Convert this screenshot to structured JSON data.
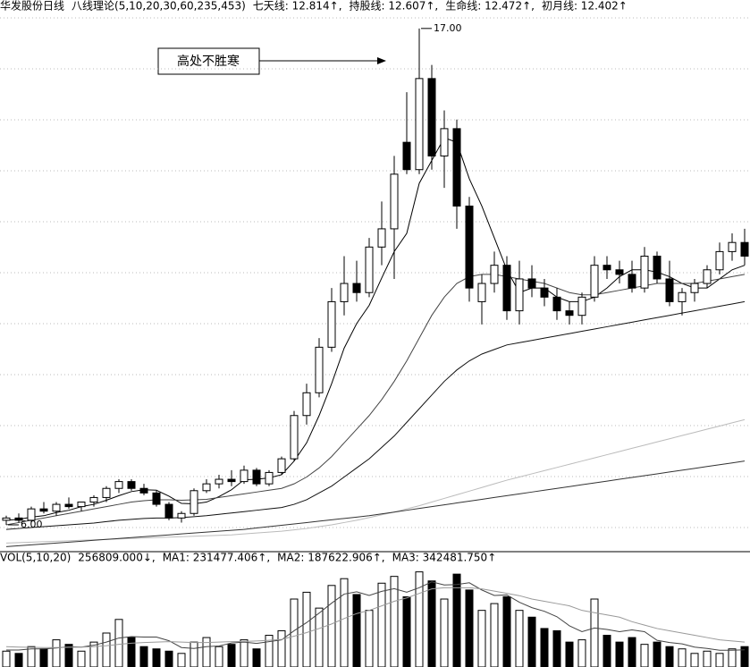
{
  "chart_data": [
    {
      "type": "candlestick",
      "title": "华发股份日线",
      "subtitle": "八线理论(5,10,20,30,60,235,453)",
      "readouts": [
        "七天线: 12.814↑,",
        "持股线: 12.607↑,",
        "生命线: 12.472↑,",
        "初月线: 12.402↑"
      ],
      "annotations": [
        "高处不胜寒"
      ],
      "high_label": "17.00",
      "low_label": "6.00",
      "open": [
        6.2,
        6.25,
        6.2,
        6.45,
        6.4,
        6.55,
        6.5,
        6.6,
        6.7,
        6.9,
        7.05,
        6.9,
        6.8,
        6.55,
        6.25,
        6.35,
        6.85,
        7.0,
        7.1,
        7.05,
        7.3,
        7.0,
        7.25,
        7.55,
        8.5,
        9.0,
        10.0,
        11.0,
        11.4,
        11.2,
        12.2,
        12.6,
        14.5,
        13.9,
        15.9,
        14.2,
        14.8,
        13.1,
        11.0,
        11.4,
        11.8,
        10.8,
        11.5,
        11.3,
        11.1,
        10.8,
        10.7,
        11.1,
        11.8,
        11.7,
        11.6,
        11.3,
        12.0,
        11.5,
        11.0,
        11.2,
        11.4,
        11.7,
        12.1,
        12.3
      ],
      "high": [
        6.3,
        6.35,
        6.5,
        6.6,
        6.6,
        6.7,
        6.6,
        6.75,
        6.95,
        7.1,
        7.1,
        7.0,
        6.85,
        6.6,
        6.4,
        6.9,
        7.1,
        7.2,
        7.3,
        7.4,
        7.35,
        7.3,
        7.6,
        8.6,
        9.2,
        10.2,
        11.3,
        12.0,
        11.9,
        12.4,
        13.2,
        14.2,
        15.6,
        17.0,
        16.2,
        15.2,
        15.0,
        13.3,
        11.6,
        12.1,
        12.0,
        11.9,
        11.8,
        11.5,
        11.3,
        11.0,
        11.2,
        12.0,
        12.0,
        11.9,
        11.9,
        12.2,
        12.1,
        11.9,
        11.3,
        11.5,
        11.8,
        12.3,
        12.5,
        12.6
      ],
      "low": [
        6.1,
        6.15,
        6.15,
        6.35,
        6.3,
        6.45,
        6.4,
        6.5,
        6.6,
        6.8,
        6.85,
        6.75,
        6.5,
        6.2,
        6.15,
        6.3,
        6.8,
        6.9,
        6.95,
        7.0,
        6.95,
        6.95,
        7.2,
        7.5,
        8.3,
        8.9,
        9.9,
        10.7,
        11.0,
        11.1,
        11.8,
        11.5,
        13.8,
        13.8,
        13.9,
        13.5,
        12.6,
        11.0,
        10.5,
        11.2,
        10.6,
        10.5,
        11.1,
        10.9,
        10.6,
        10.5,
        10.5,
        11.0,
        11.5,
        11.4,
        11.2,
        11.2,
        11.4,
        10.9,
        10.7,
        11.0,
        11.3,
        11.6,
        11.9,
        11.8
      ],
      "close": [
        6.25,
        6.2,
        6.45,
        6.4,
        6.55,
        6.5,
        6.6,
        6.7,
        6.9,
        7.05,
        6.9,
        6.8,
        6.55,
        6.25,
        6.35,
        6.85,
        7.0,
        7.1,
        7.05,
        7.3,
        7.0,
        7.25,
        7.55,
        8.5,
        9.0,
        10.0,
        11.0,
        11.4,
        11.2,
        12.2,
        12.6,
        13.8,
        13.9,
        15.9,
        14.2,
        14.8,
        13.1,
        11.3,
        11.4,
        11.8,
        10.8,
        11.5,
        11.3,
        11.1,
        10.8,
        10.7,
        11.1,
        11.8,
        11.7,
        11.6,
        11.3,
        12.0,
        11.5,
        11.0,
        11.2,
        11.4,
        11.7,
        12.1,
        12.3,
        12.0
      ],
      "color_up": "#ffffff",
      "color_down": "#000000",
      "lines": [
        {
          "color": "#000000",
          "values": [
            6.2,
            6.22,
            6.27,
            6.3,
            6.37,
            6.42,
            6.5,
            6.55,
            6.64,
            6.74,
            6.83,
            6.87,
            6.86,
            6.73,
            6.57,
            6.56,
            6.6,
            6.72,
            6.87,
            7.09,
            7.1,
            7.13,
            7.2,
            7.5,
            7.9,
            8.5,
            9.2,
            9.98,
            10.52,
            10.92,
            11.52,
            12.1,
            12.5,
            13.6,
            14.1,
            14.6,
            14.5,
            13.7,
            13.1,
            12.4,
            11.7,
            11.2,
            11.3,
            11.3,
            11.1,
            11.0,
            11.0,
            11.1,
            11.3,
            11.55,
            11.7,
            11.7,
            11.65,
            11.55,
            11.4,
            11.3,
            11.3,
            11.5,
            11.7,
            11.8
          ]
        },
        {
          "color": "#444444",
          "values": [
            6.1,
            6.15,
            6.2,
            6.25,
            6.3,
            6.35,
            6.4,
            6.45,
            6.5,
            6.55,
            6.6,
            6.63,
            6.65,
            6.65,
            6.64,
            6.65,
            6.66,
            6.7,
            6.74,
            6.78,
            6.82,
            6.86,
            6.9,
            7.0,
            7.15,
            7.35,
            7.6,
            7.9,
            8.2,
            8.5,
            8.85,
            9.25,
            9.7,
            10.2,
            10.7,
            11.1,
            11.4,
            11.55,
            11.6,
            11.6,
            11.55,
            11.5,
            11.45,
            11.4,
            11.3,
            11.2,
            11.15,
            11.15,
            11.2,
            11.25,
            11.3,
            11.35,
            11.4,
            11.4,
            11.4,
            11.4,
            11.45,
            11.5,
            11.55,
            11.6
          ]
        },
        {
          "color": "#111111",
          "values": [
            6.0,
            6.02,
            6.04,
            6.06,
            6.08,
            6.1,
            6.12,
            6.14,
            6.17,
            6.2,
            6.22,
            6.24,
            6.25,
            6.25,
            6.26,
            6.28,
            6.3,
            6.33,
            6.36,
            6.39,
            6.42,
            6.45,
            6.48,
            6.55,
            6.65,
            6.8,
            6.95,
            7.15,
            7.35,
            7.55,
            7.8,
            8.05,
            8.35,
            8.65,
            8.95,
            9.25,
            9.5,
            9.7,
            9.85,
            9.95,
            10.05,
            10.1,
            10.15,
            10.2,
            10.25,
            10.3,
            10.35,
            10.4,
            10.45,
            10.5,
            10.55,
            10.6,
            10.65,
            10.7,
            10.75,
            10.8,
            10.85,
            10.9,
            10.95,
            11.0
          ]
        },
        {
          "color": "#bbbbbb",
          "values": [
            5.7,
            5.71,
            5.72,
            5.73,
            5.74,
            5.75,
            5.76,
            5.77,
            5.78,
            5.79,
            5.8,
            5.81,
            5.82,
            5.83,
            5.84,
            5.85,
            5.86,
            5.87,
            5.88,
            5.9,
            5.92,
            5.94,
            5.96,
            5.99,
            6.02,
            6.06,
            6.1,
            6.15,
            6.2,
            6.26,
            6.32,
            6.38,
            6.45,
            6.52,
            6.6,
            6.68,
            6.76,
            6.84,
            6.92,
            7.0,
            7.08,
            7.15,
            7.22,
            7.29,
            7.36,
            7.43,
            7.5,
            7.57,
            7.64,
            7.71,
            7.78,
            7.85,
            7.92,
            7.99,
            8.06,
            8.13,
            8.2,
            8.27,
            8.34,
            8.41
          ]
        },
        {
          "color": "#333333",
          "values": [
            5.62,
            5.64,
            5.66,
            5.68,
            5.7,
            5.72,
            5.74,
            5.76,
            5.78,
            5.8,
            5.82,
            5.84,
            5.86,
            5.88,
            5.9,
            5.92,
            5.94,
            5.96,
            5.98,
            6.0,
            6.03,
            6.06,
            6.09,
            6.12,
            6.15,
            6.18,
            6.21,
            6.24,
            6.27,
            6.3,
            6.34,
            6.38,
            6.42,
            6.46,
            6.5,
            6.54,
            6.58,
            6.62,
            6.66,
            6.7,
            6.74,
            6.78,
            6.82,
            6.86,
            6.9,
            6.94,
            6.98,
            7.02,
            7.06,
            7.1,
            7.14,
            7.18,
            7.22,
            7.26,
            7.3,
            7.34,
            7.38,
            7.42,
            7.46,
            7.5
          ]
        }
      ],
      "ylim": [
        5.55,
        17.35
      ]
    },
    {
      "type": "bar",
      "title": "VOL(5,10,20)",
      "readouts": [
        "256809.000↓,",
        "MA1: 231477.406↑,",
        "MA2: 187622.906↑,",
        "MA3: 342481.750↑"
      ],
      "values": [
        70000,
        60000,
        90000,
        80000,
        120000,
        100000,
        70000,
        110000,
        150000,
        210000,
        130000,
        90000,
        80000,
        70000,
        60000,
        110000,
        130000,
        90000,
        100000,
        120000,
        80000,
        140000,
        160000,
        300000,
        330000,
        260000,
        360000,
        390000,
        320000,
        250000,
        370000,
        400000,
        310000,
        420000,
        380000,
        300000,
        410000,
        340000,
        250000,
        280000,
        310000,
        250000,
        220000,
        170000,
        160000,
        110000,
        120000,
        300000,
        140000,
        110000,
        130000,
        100000,
        110000,
        90000,
        80000,
        60000,
        70000,
        60000,
        80000,
        90000
      ],
      "lines": [
        {
          "color": "#444444",
          "values": [
            75000,
            75000,
            80000,
            80000,
            84000,
            90000,
            88000,
            96000,
            110000,
            128000,
            134000,
            132000,
            132000,
            116000,
            86000,
            82000,
            90000,
            93000,
            106000,
            110000,
            104000,
            112000,
            120000,
            160000,
            196000,
            238000,
            282000,
            322000,
            332000,
            316000,
            334000,
            346000,
            330000,
            350000,
            376000,
            362000,
            364000,
            372000,
            340000,
            316000,
            318000,
            286000,
            262000,
            246000,
            222000,
            182000,
            156000,
            172000,
            166000,
            156000,
            164000,
            156000,
            118000,
            108000,
            102000,
            88000,
            82000,
            74000,
            74000,
            76000
          ]
        },
        {
          "color": "#999999",
          "values": [
            90000,
            88000,
            87000,
            86000,
            86000,
            87000,
            88000,
            90000,
            94000,
            100000,
            105000,
            108000,
            110000,
            112000,
            110000,
            108000,
            108000,
            110000,
            112000,
            113000,
            115000,
            118000,
            122000,
            136000,
            152000,
            170000,
            190000,
            214000,
            236000,
            250000,
            270000,
            290000,
            305000,
            325000,
            345000,
            350000,
            350000,
            350000,
            345000,
            335000,
            325000,
            315000,
            300000,
            290000,
            280000,
            270000,
            250000,
            240000,
            230000,
            220000,
            200000,
            185000,
            170000,
            160000,
            150000,
            140000,
            130000,
            120000,
            115000,
            110000
          ]
        }
      ],
      "ylim": [
        0,
        450000
      ]
    }
  ]
}
